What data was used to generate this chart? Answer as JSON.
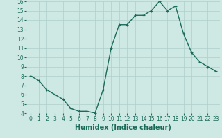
{
  "x": [
    0,
    1,
    2,
    3,
    4,
    5,
    6,
    7,
    8,
    9,
    10,
    11,
    12,
    13,
    14,
    15,
    16,
    17,
    18,
    19,
    20,
    21,
    22,
    23
  ],
  "y": [
    8,
    7.5,
    6.5,
    6,
    5.5,
    4.5,
    4.2,
    4.2,
    4,
    6.5,
    11,
    13.5,
    13.5,
    14.5,
    14.5,
    15,
    16,
    15,
    15.5,
    12.5,
    10.5,
    9.5,
    9,
    8.5
  ],
  "line_color": "#1a6b5a",
  "bg_color": "#cee8e4",
  "grid_color": "#aecfcb",
  "xlabel": "Humidex (Indice chaleur)",
  "ylim": [
    4,
    16
  ],
  "xlim": [
    -0.5,
    23.5
  ],
  "yticks": [
    4,
    5,
    6,
    7,
    8,
    9,
    10,
    11,
    12,
    13,
    14,
    15,
    16
  ],
  "xticks": [
    0,
    1,
    2,
    3,
    4,
    5,
    6,
    7,
    8,
    9,
    10,
    11,
    12,
    13,
    14,
    15,
    16,
    17,
    18,
    19,
    20,
    21,
    22,
    23
  ],
  "marker": "+",
  "marker_size": 3.5,
  "line_width": 1.0,
  "xlabel_fontsize": 7,
  "tick_fontsize": 5.5
}
